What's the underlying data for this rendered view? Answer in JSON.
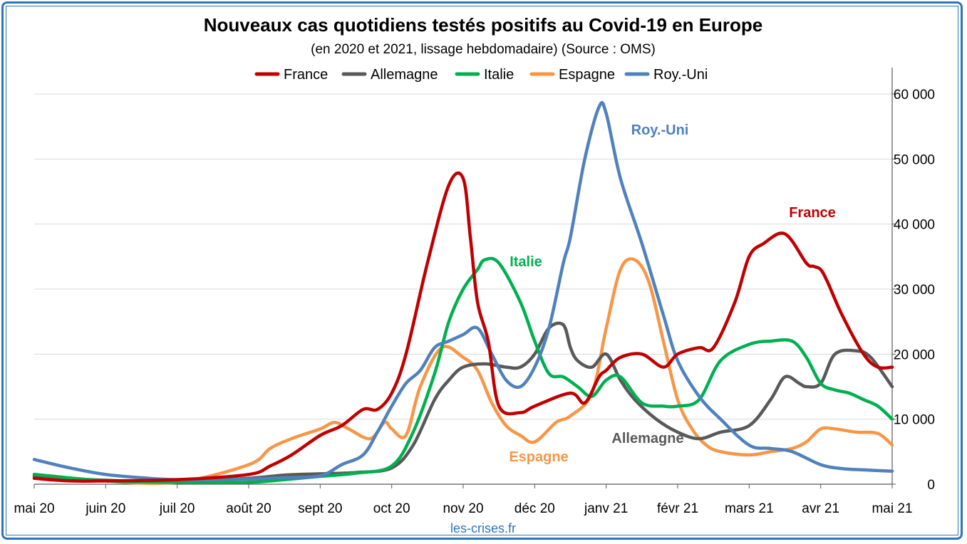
{
  "chart_data": {
    "type": "line",
    "title": "Nouveaux cas quotidiens testés positifs au Covid-19 en Europe",
    "subtitle": "(en 2020 et 2021, lissage hebdomadaire) (Source : OMS)",
    "source_label": "les-crises.fr",
    "x_tick_labels": [
      "mai 20",
      "juin 20",
      "juil 20",
      "août 20",
      "sept 20",
      "oct 20",
      "nov 20",
      "déc 20",
      "janv 21",
      "févr 21",
      "mars 21",
      "avr 21",
      "mai 21"
    ],
    "y_tick_labels": [
      "0",
      "10 000",
      "20 000",
      "30 000",
      "40 000",
      "50 000",
      "60 000"
    ],
    "ylim": [
      0,
      60000
    ],
    "y_ticks": [
      0,
      10000,
      20000,
      30000,
      40000,
      50000,
      60000
    ],
    "grid": true,
    "legend_position": "top",
    "series": [
      {
        "name": "France",
        "color": "#c00000",
        "label": "France",
        "x": [
          0,
          0.5,
          1,
          2,
          3,
          3.3,
          3.6,
          4,
          4.3,
          4.6,
          4.8,
          5,
          5.2,
          5.5,
          5.8,
          6,
          6.1,
          6.2,
          6.35,
          6.5,
          6.8,
          7,
          7.5,
          7.7,
          7.9,
          8,
          8.2,
          8.5,
          8.8,
          9,
          9.3,
          9.5,
          9.8,
          10,
          10.2,
          10.5,
          10.8,
          10.9,
          11,
          11.1,
          11.3,
          11.6,
          11.8,
          12
        ],
        "values": [
          900,
          500,
          500,
          700,
          1500,
          2800,
          4500,
          7500,
          9000,
          11500,
          11500,
          14000,
          20000,
          34000,
          46000,
          47000,
          38000,
          28000,
          22000,
          12000,
          11000,
          12000,
          14000,
          12500,
          16500,
          17500,
          19500,
          20000,
          18000,
          20000,
          21000,
          21000,
          28000,
          35000,
          37000,
          38500,
          34000,
          33500,
          33000,
          31000,
          26000,
          20000,
          18000,
          18000
        ]
      },
      {
        "name": "Allemagne",
        "color": "#595959",
        "label": "Allemagne",
        "x": [
          0,
          1,
          2,
          3,
          3.5,
          4,
          4.5,
          5,
          5.3,
          5.6,
          5.8,
          6,
          6.3,
          6.6,
          6.8,
          7,
          7.2,
          7.4,
          7.5,
          7.6,
          7.8,
          8,
          8.2,
          8.4,
          8.7,
          9,
          9.3,
          9.6,
          10,
          10.3,
          10.5,
          10.7,
          10.8,
          11,
          11.2,
          11.5,
          11.7,
          12
        ],
        "values": [
          1200,
          600,
          400,
          900,
          1400,
          1600,
          1800,
          2500,
          6000,
          13000,
          16000,
          18000,
          18500,
          18000,
          18000,
          20000,
          24000,
          24500,
          21000,
          19000,
          18000,
          20000,
          16000,
          13000,
          10000,
          8000,
          7000,
          8000,
          9000,
          13000,
          16500,
          15500,
          15000,
          15500,
          20000,
          20500,
          19500,
          15000
        ]
      },
      {
        "name": "Italie",
        "color": "#00b050",
        "label": "Italie",
        "x": [
          0,
          1,
          2,
          3,
          3.5,
          4,
          4.5,
          5,
          5.3,
          5.6,
          5.8,
          6,
          6.2,
          6.3,
          6.5,
          6.8,
          7,
          7.2,
          7.4,
          7.6,
          7.8,
          8,
          8.2,
          8.5,
          8.8,
          9,
          9.3,
          9.6,
          10,
          10.3,
          10.6,
          10.8,
          11,
          11.2,
          11.4,
          11.6,
          11.8,
          12
        ],
        "values": [
          1500,
          500,
          300,
          300,
          700,
          1200,
          1700,
          2800,
          8000,
          17000,
          25000,
          30000,
          33000,
          34500,
          34000,
          28000,
          22000,
          17000,
          16500,
          15000,
          13500,
          16000,
          16500,
          12500,
          12000,
          12000,
          13000,
          19000,
          21500,
          22000,
          22000,
          19500,
          15500,
          14500,
          14000,
          13000,
          12000,
          10000
        ]
      },
      {
        "name": "Espagne",
        "color": "#f79646",
        "label": "Espagne",
        "x": [
          0,
          1,
          2,
          3,
          3.3,
          3.6,
          4,
          4.2,
          4.4,
          4.7,
          4.9,
          5,
          5.2,
          5.4,
          5.7,
          6,
          6.2,
          6.4,
          6.6,
          6.8,
          7,
          7.3,
          7.5,
          7.8,
          8,
          8.2,
          8.4,
          8.6,
          8.8,
          9,
          9.2,
          9.4,
          9.6,
          10,
          10.3,
          10.6,
          10.8,
          11,
          11.2,
          11.5,
          11.8,
          12
        ],
        "values": [
          1500,
          500,
          300,
          3000,
          5500,
          7000,
          8500,
          9500,
          8500,
          7000,
          9500,
          8500,
          7500,
          15000,
          21000,
          19500,
          17500,
          12500,
          9000,
          7500,
          6500,
          9500,
          10500,
          14000,
          24000,
          33000,
          34500,
          31000,
          22000,
          13000,
          8500,
          6000,
          5000,
          4500,
          5000,
          5500,
          6500,
          8500,
          8500,
          8000,
          7800,
          6000
        ]
      },
      {
        "name": "Roy.-Uni",
        "color": "#4f81bd",
        "label": "Roy.-Uni",
        "x": [
          0,
          0.5,
          1,
          1.5,
          2,
          3,
          3.5,
          4,
          4.3,
          4.6,
          4.8,
          5,
          5.2,
          5.4,
          5.6,
          5.8,
          6,
          6.2,
          6.4,
          6.6,
          6.8,
          7,
          7.2,
          7.4,
          7.5,
          7.7,
          7.9,
          8,
          8.2,
          8.5,
          8.8,
          9,
          9.3,
          9.6,
          10,
          10.3,
          10.6,
          11,
          11.3,
          11.6,
          12
        ],
        "values": [
          3800,
          2500,
          1500,
          1000,
          700,
          800,
          1000,
          1300,
          3000,
          4500,
          8000,
          12000,
          15500,
          17500,
          21000,
          22000,
          23000,
          24000,
          20000,
          16000,
          15000,
          18000,
          24000,
          34000,
          38000,
          50000,
          58000,
          57000,
          47000,
          37000,
          26000,
          19000,
          13500,
          10000,
          6000,
          5500,
          5000,
          3000,
          2400,
          2200,
          2000
        ]
      }
    ]
  }
}
